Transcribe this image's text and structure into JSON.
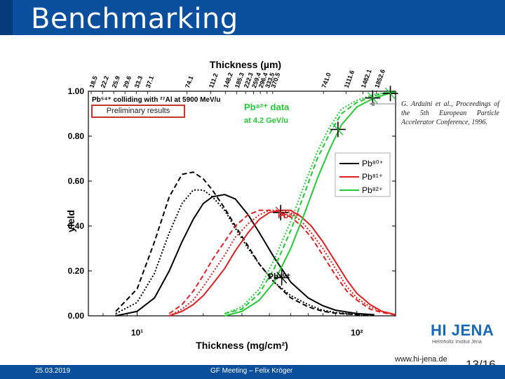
{
  "slide": {
    "title": "Benchmarking",
    "footer_date": "25.03.2019",
    "footer_meeting": "GF Meeting – Felix Kröger",
    "url": "www.hi-jena.de",
    "page": "13/16",
    "logo": "HI JENA",
    "logo_sub": "Helmholtz Institut Jena",
    "citation": "G. Arduini et al., Proceedings of the 5th European Particle Accelerator Conference, 1996.",
    "preliminary": "Preliminary results"
  },
  "colors": {
    "header": "#0a4f9e",
    "black": "#000000",
    "red": "#e02020",
    "green": "#22cc33"
  },
  "chart_data": {
    "type": "line",
    "xlabel": "Thickness (mg/cm²)",
    "ylabel": "yield",
    "top_axis_label": "Thickness (µm)",
    "x_scale": "log",
    "xlim": [
      6,
      150
    ],
    "ylim": [
      0,
      1
    ],
    "y_ticks": [
      "0.00",
      "0.20",
      "0.40",
      "0.60",
      "0.80",
      "1.00"
    ],
    "x_tick_labels": [
      "10¹",
      "10²"
    ],
    "top_ticks": [
      "18.5",
      "22.2",
      "25.9",
      "29.6",
      "33.3",
      "37.1",
      "74.1",
      "111.2",
      "148.2",
      "185.3",
      "222.3",
      "259.4",
      "296.4",
      "333.5",
      "370.5",
      "741.0",
      "1111.6",
      "1482.1",
      "1852.6"
    ],
    "legend": [
      "Pb⁸⁰⁺",
      "Pb⁸¹⁺",
      "Pb⁸²⁺"
    ],
    "annotations": {
      "pb54": "Pb⁵⁴⁺ colliding with ²⁷Al at 5900 MeV/u",
      "pb82_line1": "Pb⁸²⁺ data",
      "pb82_line2": "at 4.2 GeV/u",
      "pb81": "Pb⁸¹⁺",
      "pb80": "Pb⁸⁰⁺"
    },
    "series": [
      {
        "name": "Pb⁸⁰⁺",
        "color": "#000000",
        "variant": "solid",
        "x": [
          8,
          10,
          12,
          14,
          16,
          18,
          20,
          22,
          25,
          28,
          32,
          36,
          42,
          50,
          60,
          70,
          80,
          100,
          120
        ],
        "y": [
          0.0,
          0.02,
          0.08,
          0.2,
          0.33,
          0.43,
          0.5,
          0.53,
          0.54,
          0.52,
          0.45,
          0.37,
          0.26,
          0.15,
          0.08,
          0.045,
          0.025,
          0.01,
          0.005
        ]
      },
      {
        "name": "",
        "color": "#000000",
        "variant": "dashed",
        "x": [
          8,
          10,
          12,
          14,
          16,
          18,
          20,
          22,
          25,
          28,
          32,
          36,
          42,
          50,
          60,
          70,
          80,
          100,
          120
        ],
        "y": [
          0.02,
          0.12,
          0.33,
          0.53,
          0.63,
          0.64,
          0.61,
          0.56,
          0.48,
          0.4,
          0.31,
          0.23,
          0.15,
          0.08,
          0.04,
          0.02,
          0.012,
          0.005,
          0.002
        ]
      },
      {
        "name": "",
        "color": "#000000",
        "variant": "dotted",
        "x": [
          8,
          10,
          12,
          14,
          16,
          18,
          20,
          22,
          25,
          28,
          32,
          36,
          42,
          50,
          60,
          70,
          80,
          100,
          120
        ],
        "y": [
          0.01,
          0.06,
          0.19,
          0.37,
          0.5,
          0.56,
          0.56,
          0.53,
          0.47,
          0.39,
          0.3,
          0.23,
          0.15,
          0.09,
          0.05,
          0.025,
          0.015,
          0.006,
          0.003
        ]
      },
      {
        "name": "Pb⁸¹⁺",
        "color": "#e02020",
        "variant": "solid",
        "x": [
          14,
          16,
          18,
          20,
          22,
          25,
          28,
          32,
          36,
          40,
          45,
          50,
          56,
          62,
          70,
          80,
          90,
          100,
          115,
          130,
          150
        ],
        "y": [
          0.0,
          0.02,
          0.05,
          0.09,
          0.14,
          0.21,
          0.29,
          0.37,
          0.43,
          0.46,
          0.47,
          0.47,
          0.44,
          0.4,
          0.33,
          0.24,
          0.16,
          0.1,
          0.05,
          0.02,
          0.005
        ]
      },
      {
        "name": "",
        "color": "#e02020",
        "variant": "dashed",
        "x": [
          14,
          16,
          18,
          20,
          22,
          25,
          28,
          32,
          36,
          40,
          45,
          50,
          56,
          62,
          70,
          80,
          90,
          100,
          115,
          130,
          150
        ],
        "y": [
          0.01,
          0.05,
          0.11,
          0.18,
          0.25,
          0.33,
          0.4,
          0.45,
          0.47,
          0.47,
          0.46,
          0.44,
          0.4,
          0.35,
          0.27,
          0.18,
          0.11,
          0.07,
          0.03,
          0.015,
          0.004
        ]
      },
      {
        "name": "",
        "color": "#e02020",
        "variant": "dotted",
        "x": [
          14,
          16,
          18,
          20,
          22,
          25,
          28,
          32,
          36,
          40,
          45,
          50,
          56,
          62,
          70,
          80,
          90,
          100,
          115,
          130,
          150
        ],
        "y": [
          0.0,
          0.03,
          0.07,
          0.13,
          0.19,
          0.27,
          0.35,
          0.41,
          0.45,
          0.47,
          0.47,
          0.46,
          0.42,
          0.37,
          0.3,
          0.21,
          0.13,
          0.08,
          0.04,
          0.02,
          0.005
        ]
      },
      {
        "name": "Pb⁸²⁺",
        "color": "#22cc33",
        "variant": "solid",
        "x": [
          25,
          30,
          36,
          42,
          50,
          58,
          66,
          75,
          85,
          100,
          120,
          140,
          150
        ],
        "y": [
          0.0,
          0.02,
          0.07,
          0.15,
          0.3,
          0.46,
          0.61,
          0.74,
          0.85,
          0.93,
          0.97,
          0.99,
          0.995
        ]
      },
      {
        "name": "",
        "color": "#22cc33",
        "variant": "dashed",
        "x": [
          25,
          30,
          36,
          42,
          50,
          58,
          66,
          75,
          85,
          100,
          120,
          140,
          150
        ],
        "y": [
          0.01,
          0.03,
          0.1,
          0.21,
          0.38,
          0.55,
          0.7,
          0.81,
          0.9,
          0.95,
          0.98,
          0.995,
          1.0
        ]
      },
      {
        "name": "",
        "color": "#22cc33",
        "variant": "dotted",
        "x": [
          25,
          30,
          36,
          42,
          50,
          58,
          66,
          75,
          85,
          100,
          120,
          140,
          150
        ],
        "y": [
          0.01,
          0.04,
          0.12,
          0.25,
          0.42,
          0.59,
          0.73,
          0.84,
          0.92,
          0.96,
          0.985,
          0.997,
          1.0
        ]
      }
    ],
    "data_points": [
      {
        "series": "Pb⁸⁰⁺",
        "x": 45.5,
        "y": 0.17
      },
      {
        "series": "Pb⁸¹⁺",
        "x": 45,
        "y": 0.46
      },
      {
        "series": "Pb⁸²⁺",
        "x": 82,
        "y": 0.83
      },
      {
        "series": "Pb⁸²⁺",
        "x": 118,
        "y": 0.97
      },
      {
        "series": "Pb⁸²⁺",
        "x": 142,
        "y": 0.99
      }
    ]
  }
}
